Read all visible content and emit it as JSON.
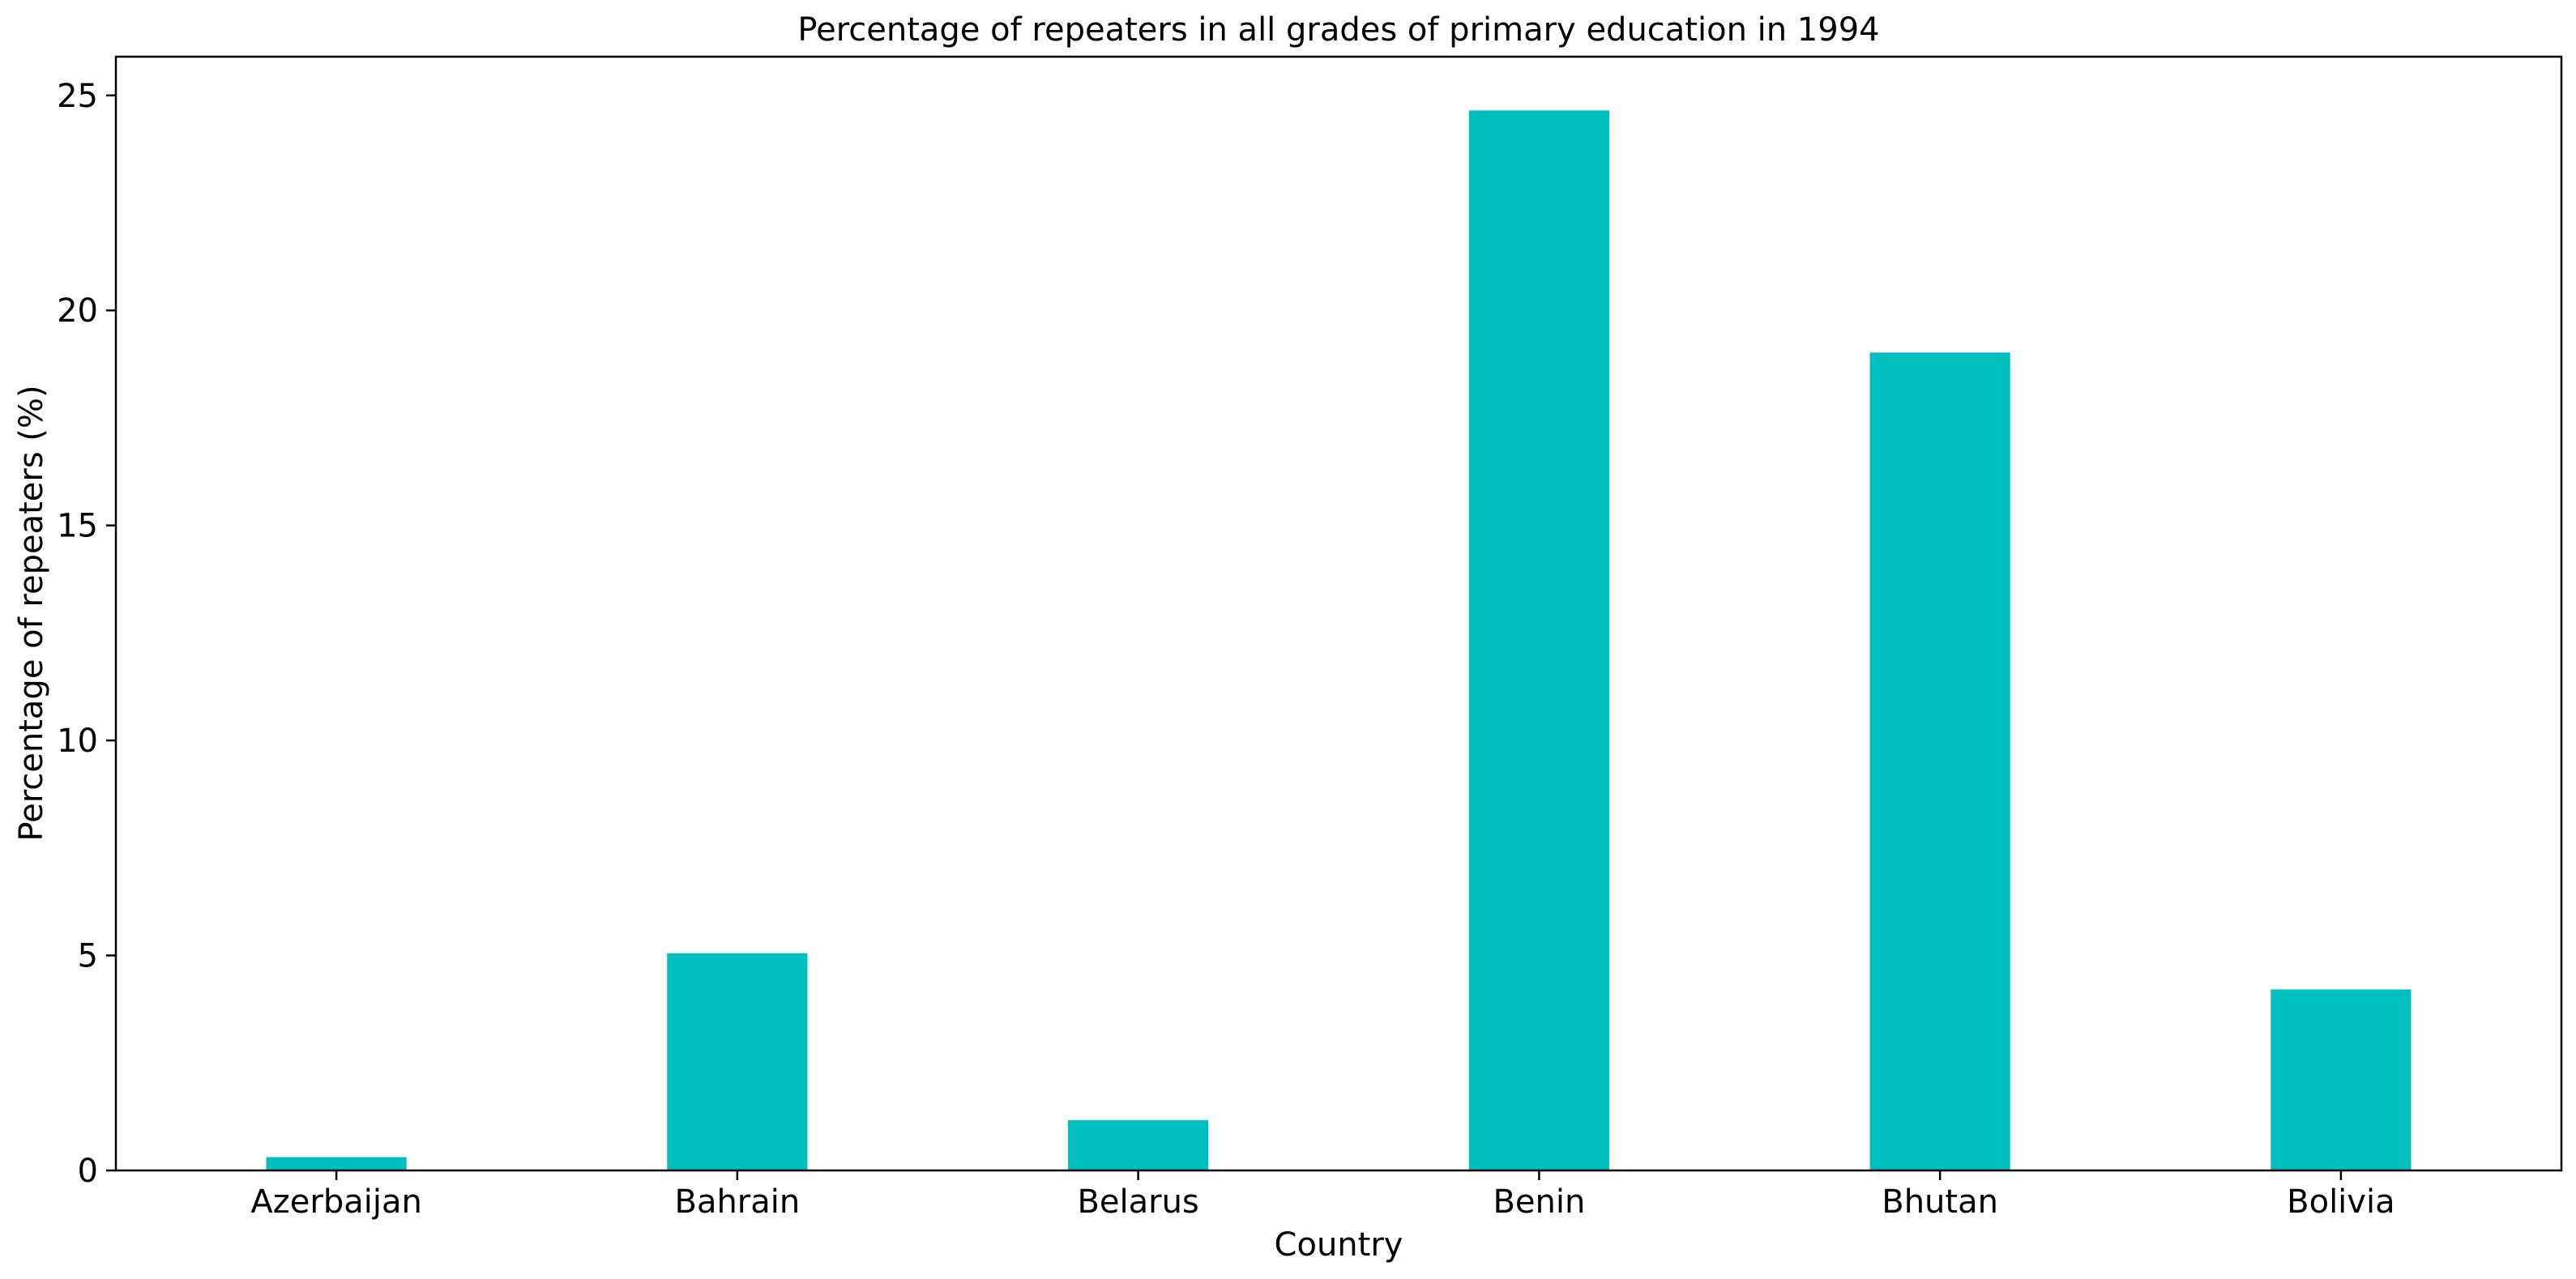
{
  "chart_data": {
    "type": "bar",
    "title": "Percentage of repeaters in all grades of primary education in 1994",
    "xlabel": "Country",
    "ylabel": "Percentage of repeaters (%)",
    "categories": [
      "Azerbaijan",
      "Bahrain",
      "Belarus",
      "Benin",
      "Bhutan",
      "Bolivia"
    ],
    "values": [
      0.31,
      5.05,
      1.17,
      24.65,
      19.02,
      4.21
    ],
    "ylim": [
      0,
      25.9
    ],
    "yticks": [
      0,
      5,
      10,
      15,
      20,
      25
    ],
    "ytick_labels": [
      "0",
      "5",
      "10",
      "15",
      "20",
      "25"
    ],
    "bar_color": "#00BFBF",
    "grid": false,
    "legend": "none"
  }
}
